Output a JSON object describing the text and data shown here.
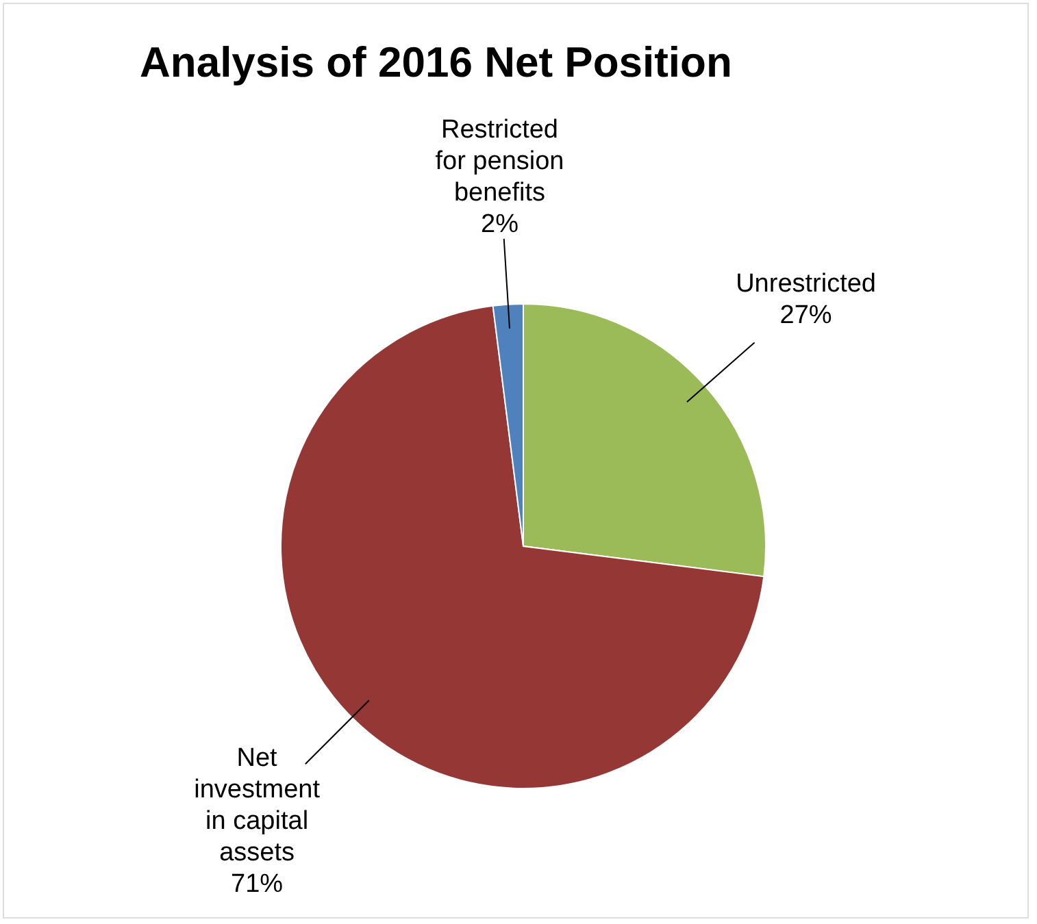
{
  "chart_data": {
    "type": "pie",
    "title": "Analysis of 2016 Net Position",
    "categories": [
      "Unrestricted",
      "Net investment in capital assets",
      "Restricted for pension benefits"
    ],
    "values": [
      27,
      71,
      2
    ],
    "colors": [
      "#9bbb59",
      "#953735",
      "#4f81bd"
    ],
    "value_labels": [
      "27%",
      "71%",
      "2%"
    ]
  }
}
